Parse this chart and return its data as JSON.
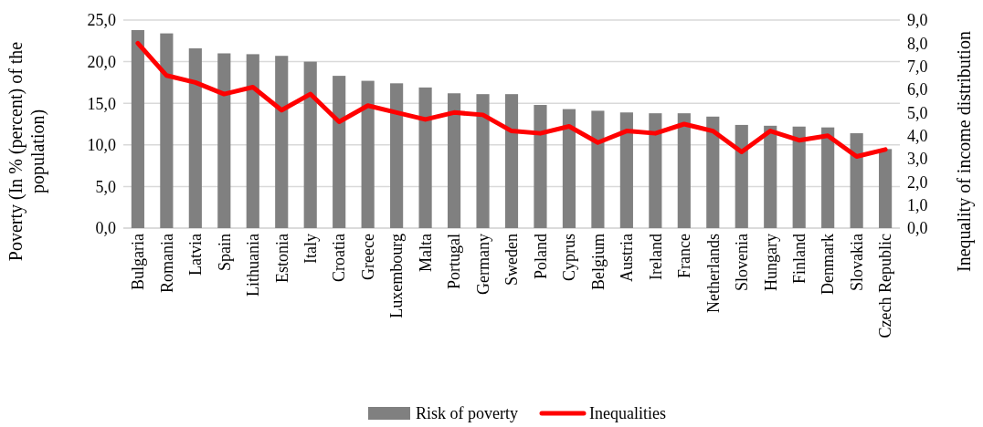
{
  "chart_data": {
    "type": "bar",
    "categories": [
      "Bulgaria",
      "Romania",
      "Latvia",
      "Spain",
      "Lithuania",
      "Estonia",
      "Italy",
      "Croatia",
      "Greece",
      "Luxembourg",
      "Malta",
      "Portugal",
      "Germany",
      "Sweden",
      "Poland",
      "Cyprus",
      "Belgium",
      "Austria",
      "Ireland",
      "France",
      "Netherlands",
      "Slovenia",
      "Hungary",
      "Finland",
      "Denmark",
      "Slovakia",
      "Czech Republic"
    ],
    "series": [
      {
        "name": "Risk of poverty",
        "color": "#808080",
        "values": [
          23.8,
          23.4,
          21.6,
          21.0,
          20.9,
          20.7,
          20.0,
          18.3,
          17.7,
          17.4,
          16.9,
          16.2,
          16.1,
          16.1,
          14.8,
          14.3,
          14.1,
          13.9,
          13.8,
          13.8,
          13.4,
          12.4,
          12.3,
          12.2,
          12.1,
          11.4,
          9.5
        ]
      },
      {
        "name": "Inequalities",
        "type": "line",
        "axis": "y2",
        "color": "#ff0000",
        "values": [
          8.0,
          6.6,
          6.3,
          5.8,
          6.1,
          5.1,
          5.8,
          4.6,
          5.3,
          5.0,
          4.7,
          5.0,
          4.9,
          4.2,
          4.1,
          4.4,
          3.7,
          4.2,
          4.1,
          4.5,
          4.2,
          3.3,
          4.2,
          3.8,
          4.0,
          3.1,
          3.4
        ]
      }
    ],
    "ylabel": "Poverty (In % (percent) of the population)",
    "y2label": "Inequality of income distribution",
    "ylim": [
      0,
      25
    ],
    "yticks": [
      {
        "value": 0,
        "label": "0,0"
      },
      {
        "value": 5,
        "label": "5,0"
      },
      {
        "value": 10,
        "label": "10,0"
      },
      {
        "value": 15,
        "label": "15,0"
      },
      {
        "value": 20,
        "label": "20,0"
      },
      {
        "value": 25,
        "label": "25,0"
      }
    ],
    "y2lim": [
      0,
      9
    ],
    "y2ticks": [
      {
        "value": 0,
        "label": "0,0"
      },
      {
        "value": 1,
        "label": "1,0"
      },
      {
        "value": 2,
        "label": "2,0"
      },
      {
        "value": 3,
        "label": "3,0"
      },
      {
        "value": 4,
        "label": "4,0"
      },
      {
        "value": 5,
        "label": "5,0"
      },
      {
        "value": 6,
        "label": "6,0"
      },
      {
        "value": 7,
        "label": "7,0"
      },
      {
        "value": 8,
        "label": "8,0"
      },
      {
        "value": 9,
        "label": "9,0"
      }
    ],
    "grid": "y",
    "legend": "bottom"
  }
}
